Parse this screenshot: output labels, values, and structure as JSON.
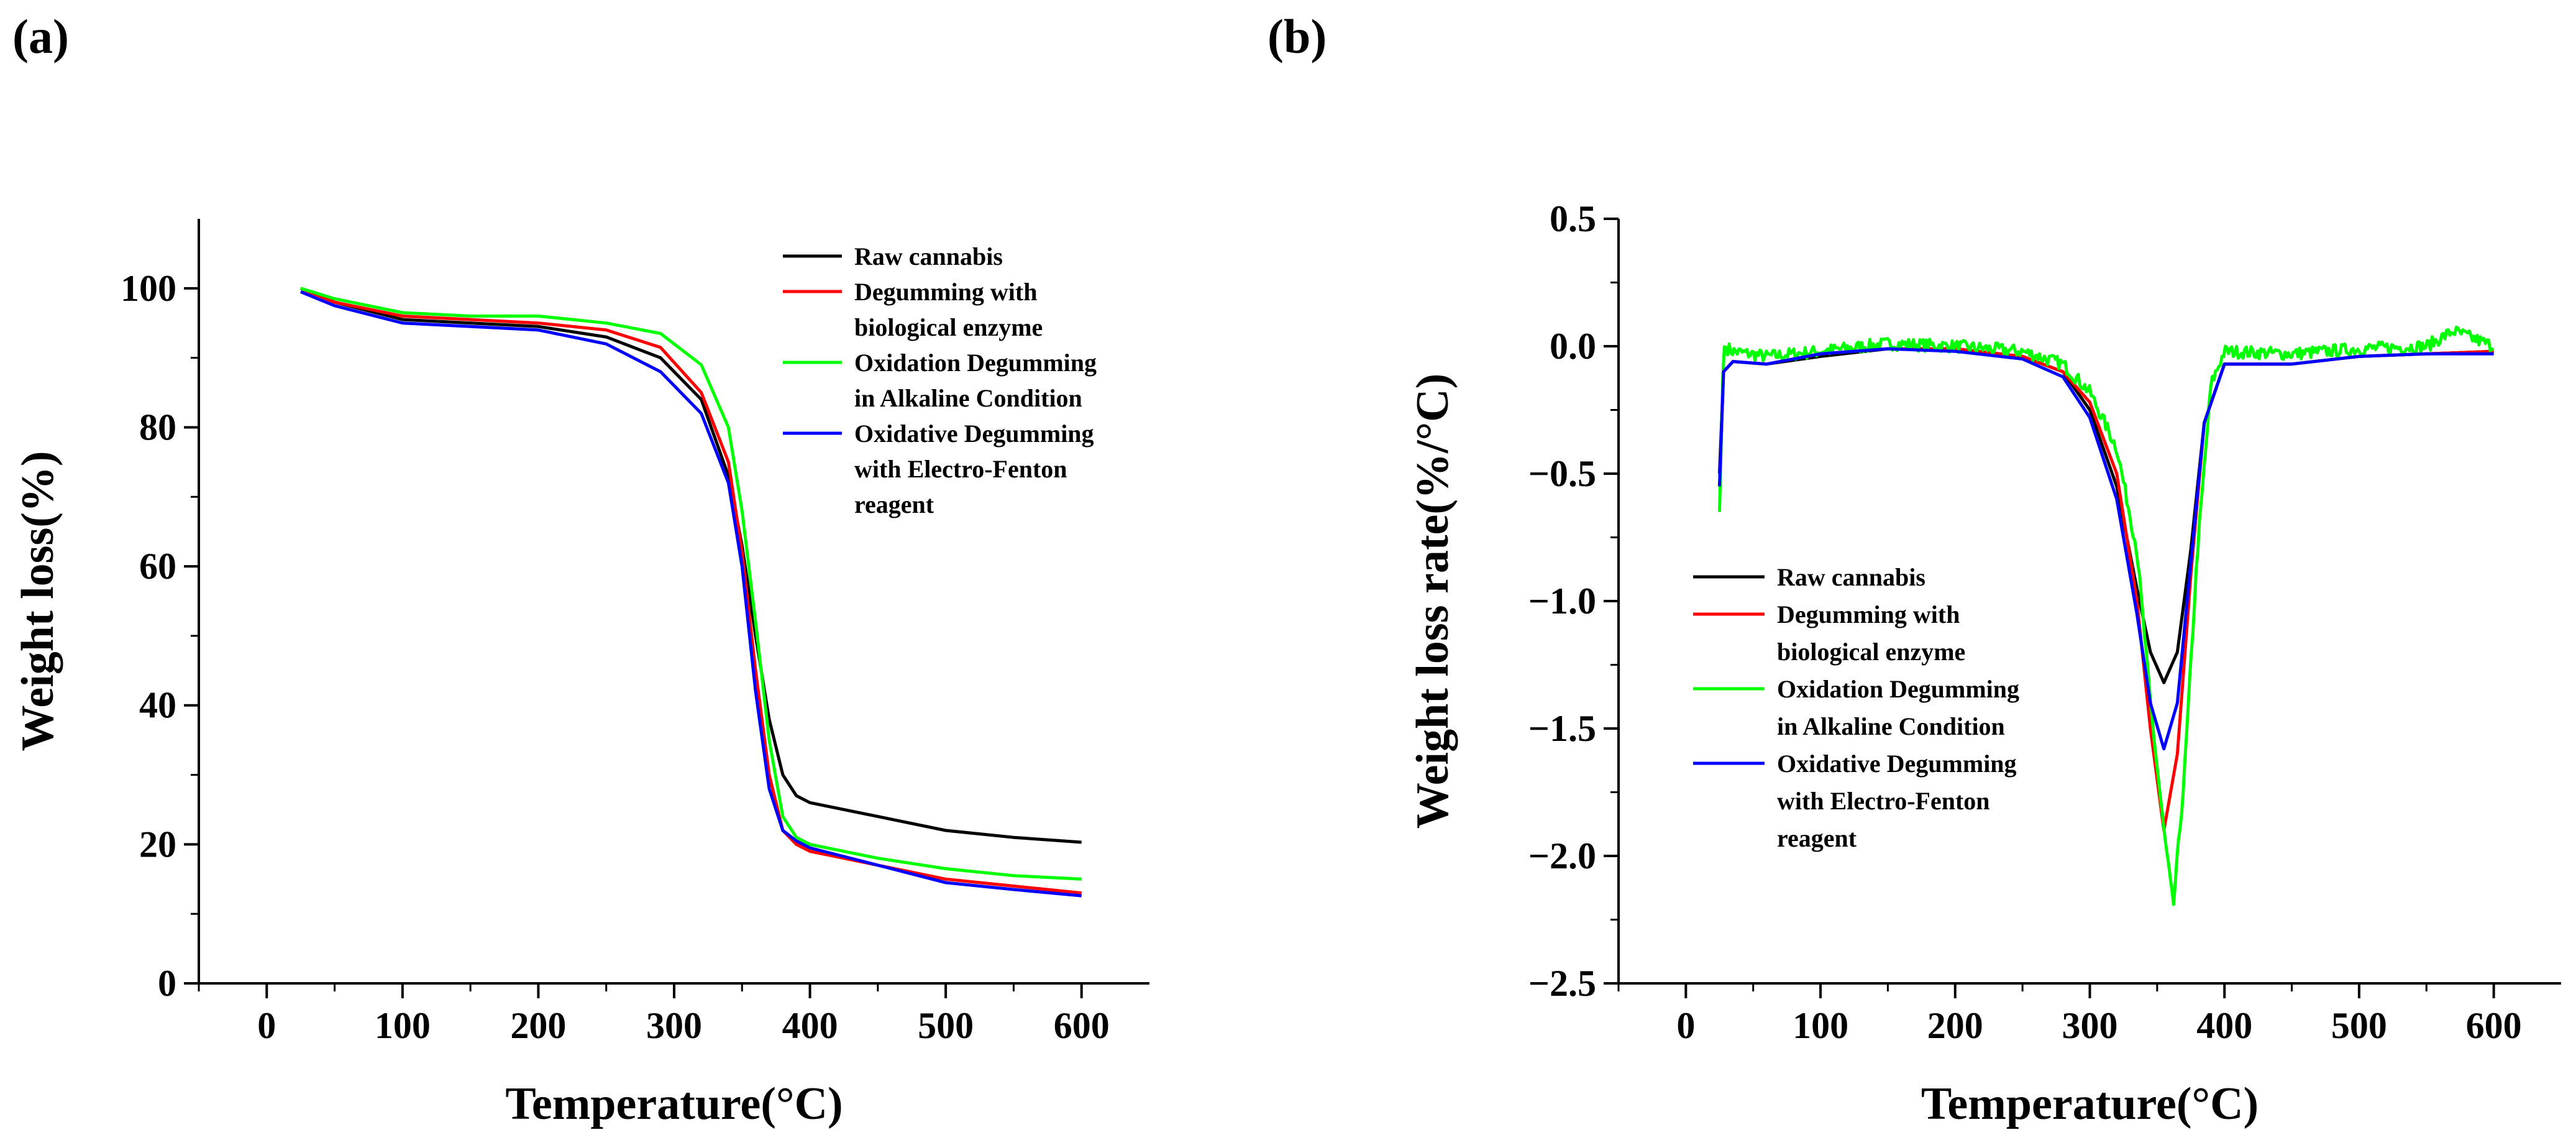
{
  "panel_labels": {
    "a": "(a)",
    "b": "(b)"
  },
  "legend": [
    {
      "lines": [
        "Raw cannabis"
      ],
      "color": "#000000"
    },
    {
      "lines": [
        "Degumming with",
        "biological enzyme"
      ],
      "color": "#ff0000"
    },
    {
      "lines": [
        "Oxidation Degumming",
        "in Alkaline Condition"
      ],
      "color": "#00ff00"
    },
    {
      "lines": [
        "Oxidative Degumming",
        "with Electro-Fenton",
        "reagent"
      ],
      "color": "#0000ff"
    }
  ],
  "chart_data": [
    {
      "type": "line",
      "panel": "(a)",
      "xlabel": "Temperature(°C)",
      "ylabel": "Weight loss(%)",
      "xlim": [
        -50,
        650
      ],
      "ylim": [
        0,
        110
      ],
      "xticks": [
        0,
        100,
        200,
        300,
        400,
        500,
        600
      ],
      "yticks": [
        0,
        20,
        40,
        60,
        80,
        100
      ],
      "legend_position": "top-right",
      "series": [
        {
          "name": "Raw cannabis",
          "color": "#000000",
          "points": [
            [
              25,
              100
            ],
            [
              50,
              98
            ],
            [
              100,
              95.5
            ],
            [
              150,
              95
            ],
            [
              200,
              94.5
            ],
            [
              250,
              93
            ],
            [
              290,
              90
            ],
            [
              320,
              84
            ],
            [
              340,
              73
            ],
            [
              350,
              63
            ],
            [
              360,
              50
            ],
            [
              370,
              38
            ],
            [
              380,
              30
            ],
            [
              390,
              27
            ],
            [
              400,
              26
            ],
            [
              450,
              24
            ],
            [
              500,
              22
            ],
            [
              550,
              21
            ],
            [
              600,
              20.3
            ]
          ]
        },
        {
          "name": "Degumming with biological enzyme",
          "color": "#ff0000",
          "points": [
            [
              25,
              100
            ],
            [
              50,
              98
            ],
            [
              100,
              96
            ],
            [
              150,
              95.5
            ],
            [
              200,
              95
            ],
            [
              250,
              94
            ],
            [
              290,
              91.5
            ],
            [
              320,
              85
            ],
            [
              340,
              75
            ],
            [
              350,
              62
            ],
            [
              360,
              45
            ],
            [
              370,
              30
            ],
            [
              380,
              22
            ],
            [
              390,
              20
            ],
            [
              400,
              19
            ],
            [
              450,
              17
            ],
            [
              500,
              15
            ],
            [
              550,
              14
            ],
            [
              600,
              13
            ]
          ]
        },
        {
          "name": "Oxidation Degumming in Alkaline Condition",
          "color": "#00ff00",
          "points": [
            [
              25,
              100
            ],
            [
              50,
              98.5
            ],
            [
              100,
              96.5
            ],
            [
              150,
              96
            ],
            [
              200,
              96
            ],
            [
              250,
              95
            ],
            [
              290,
              93.5
            ],
            [
              320,
              89
            ],
            [
              340,
              80
            ],
            [
              350,
              68
            ],
            [
              360,
              52
            ],
            [
              370,
              35
            ],
            [
              380,
              24
            ],
            [
              390,
              21
            ],
            [
              400,
              20
            ],
            [
              450,
              18
            ],
            [
              500,
              16.5
            ],
            [
              550,
              15.5
            ],
            [
              600,
              15
            ]
          ]
        },
        {
          "name": "Oxidative Degumming with Electro-Fenton reagent",
          "color": "#0000ff",
          "points": [
            [
              25,
              99.5
            ],
            [
              50,
              97.5
            ],
            [
              100,
              95
            ],
            [
              150,
              94.5
            ],
            [
              200,
              94
            ],
            [
              250,
              92
            ],
            [
              290,
              88
            ],
            [
              320,
              82
            ],
            [
              340,
              72
            ],
            [
              350,
              60
            ],
            [
              360,
              42
            ],
            [
              370,
              28
            ],
            [
              380,
              22
            ],
            [
              390,
              20.5
            ],
            [
              400,
              19.5
            ],
            [
              450,
              17
            ],
            [
              500,
              14.5
            ],
            [
              550,
              13.5
            ],
            [
              600,
              12.6
            ]
          ]
        }
      ]
    },
    {
      "type": "line",
      "panel": "(b)",
      "xlabel": "Temperature(°C)",
      "ylabel": "Weight loss rate(%/°C)",
      "xlim": [
        -50,
        650
      ],
      "ylim": [
        -2.5,
        0.5
      ],
      "xticks": [
        0,
        100,
        200,
        300,
        400,
        500,
        600
      ],
      "yticks": [
        0.5,
        0.0,
        -0.5,
        -1.0,
        -1.5,
        -2.0,
        -2.5
      ],
      "ytick_labels": [
        "0.5",
        "0.0",
        "−0.5",
        "−1.0",
        "−1.5",
        "−2.0",
        "−2.5"
      ],
      "legend_position": "middle-left",
      "series": [
        {
          "name": "Raw cannabis",
          "color": "#000000",
          "points": [
            [
              25,
              -0.5
            ],
            [
              28,
              -0.1
            ],
            [
              35,
              -0.06
            ],
            [
              60,
              -0.07
            ],
            [
              100,
              -0.04
            ],
            [
              150,
              -0.01
            ],
            [
              200,
              -0.01
            ],
            [
              250,
              -0.04
            ],
            [
              280,
              -0.1
            ],
            [
              300,
              -0.25
            ],
            [
              320,
              -0.55
            ],
            [
              335,
              -0.95
            ],
            [
              345,
              -1.2
            ],
            [
              355,
              -1.32
            ],
            [
              365,
              -1.2
            ],
            [
              375,
              -0.8
            ],
            [
              385,
              -0.3
            ],
            [
              400,
              -0.07
            ],
            [
              450,
              -0.07
            ],
            [
              500,
              -0.04
            ],
            [
              550,
              -0.03
            ],
            [
              600,
              -0.02
            ]
          ]
        },
        {
          "name": "Degumming with biological enzyme",
          "color": "#ff0000",
          "points": [
            [
              25,
              -0.55
            ],
            [
              28,
              -0.1
            ],
            [
              35,
              -0.06
            ],
            [
              60,
              -0.07
            ],
            [
              100,
              -0.03
            ],
            [
              150,
              -0.01
            ],
            [
              200,
              -0.01
            ],
            [
              250,
              -0.04
            ],
            [
              280,
              -0.1
            ],
            [
              300,
              -0.22
            ],
            [
              320,
              -0.5
            ],
            [
              335,
              -1.0
            ],
            [
              345,
              -1.5
            ],
            [
              355,
              -1.9
            ],
            [
              365,
              -1.6
            ],
            [
              375,
              -0.9
            ],
            [
              385,
              -0.3
            ],
            [
              400,
              -0.07
            ],
            [
              450,
              -0.07
            ],
            [
              500,
              -0.04
            ],
            [
              550,
              -0.03
            ],
            [
              600,
              -0.02
            ]
          ]
        },
        {
          "name": "Oxidation Degumming in Alkaline Condition",
          "color": "#00ff00",
          "points": [
            [
              25,
              -0.65
            ],
            [
              28,
              0.0
            ],
            [
              35,
              -0.02
            ],
            [
              60,
              -0.04
            ],
            [
              100,
              -0.02
            ],
            [
              150,
              0.01
            ],
            [
              200,
              0.0
            ],
            [
              250,
              -0.02
            ],
            [
              280,
              -0.07
            ],
            [
              300,
              -0.18
            ],
            [
              320,
              -0.4
            ],
            [
              335,
              -0.8
            ],
            [
              345,
              -1.4
            ],
            [
              355,
              -1.9
            ],
            [
              362,
              -2.2
            ],
            [
              370,
              -1.7
            ],
            [
              380,
              -0.8
            ],
            [
              390,
              -0.15
            ],
            [
              400,
              -0.02
            ],
            [
              450,
              -0.03
            ],
            [
              500,
              -0.01
            ],
            [
              550,
              0.0
            ],
            [
              570,
              0.06
            ],
            [
              600,
              0.0
            ]
          ]
        },
        {
          "name": "Oxidative Degumming with Electro-Fenton reagent",
          "color": "#0000ff",
          "points": [
            [
              25,
              -0.55
            ],
            [
              28,
              -0.1
            ],
            [
              35,
              -0.06
            ],
            [
              60,
              -0.07
            ],
            [
              100,
              -0.03
            ],
            [
              150,
              -0.01
            ],
            [
              200,
              -0.02
            ],
            [
              250,
              -0.05
            ],
            [
              280,
              -0.12
            ],
            [
              300,
              -0.28
            ],
            [
              320,
              -0.6
            ],
            [
              335,
              -1.05
            ],
            [
              345,
              -1.4
            ],
            [
              355,
              -1.58
            ],
            [
              365,
              -1.4
            ],
            [
              375,
              -0.85
            ],
            [
              385,
              -0.3
            ],
            [
              400,
              -0.07
            ],
            [
              450,
              -0.07
            ],
            [
              500,
              -0.04
            ],
            [
              550,
              -0.03
            ],
            [
              600,
              -0.03
            ]
          ]
        }
      ]
    }
  ]
}
